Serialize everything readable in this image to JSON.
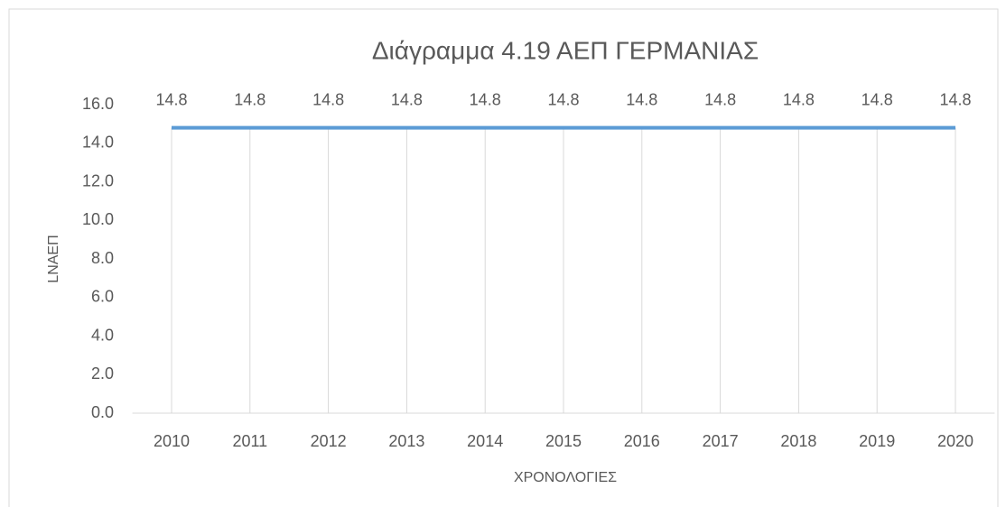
{
  "chart_data": {
    "type": "line",
    "title": "Διάγραμμα 4.19 ΑΕΠ ΓΕΡΜΑΝΙΑΣ",
    "x_label": "ΧΡΟΝΟΛΟΓΙΕΣ",
    "y_label": "LNAEΠ",
    "categories": [
      "2010",
      "2011",
      "2012",
      "2013",
      "2014",
      "2015",
      "2016",
      "2017",
      "2018",
      "2019",
      "2020"
    ],
    "series": [
      {
        "name": "LNAEΠ",
        "color": "#5b9bd5",
        "values": [
          14.8,
          14.8,
          14.8,
          14.8,
          14.8,
          14.8,
          14.8,
          14.8,
          14.8,
          14.8,
          14.8
        ]
      }
    ],
    "ylim": [
      0,
      16
    ],
    "yticks": [
      {
        "value": 0,
        "label": "0.0"
      },
      {
        "value": 2,
        "label": "2.0"
      },
      {
        "value": 4,
        "label": "4.0"
      },
      {
        "value": 6,
        "label": "6.0"
      },
      {
        "value": 8,
        "label": "8.0"
      },
      {
        "value": 10,
        "label": "10.0"
      },
      {
        "value": 12,
        "label": "12.0"
      },
      {
        "value": 14,
        "label": "14.0"
      },
      {
        "value": 16,
        "label": "16.0"
      }
    ],
    "xgrid": true,
    "data_labels": true
  }
}
